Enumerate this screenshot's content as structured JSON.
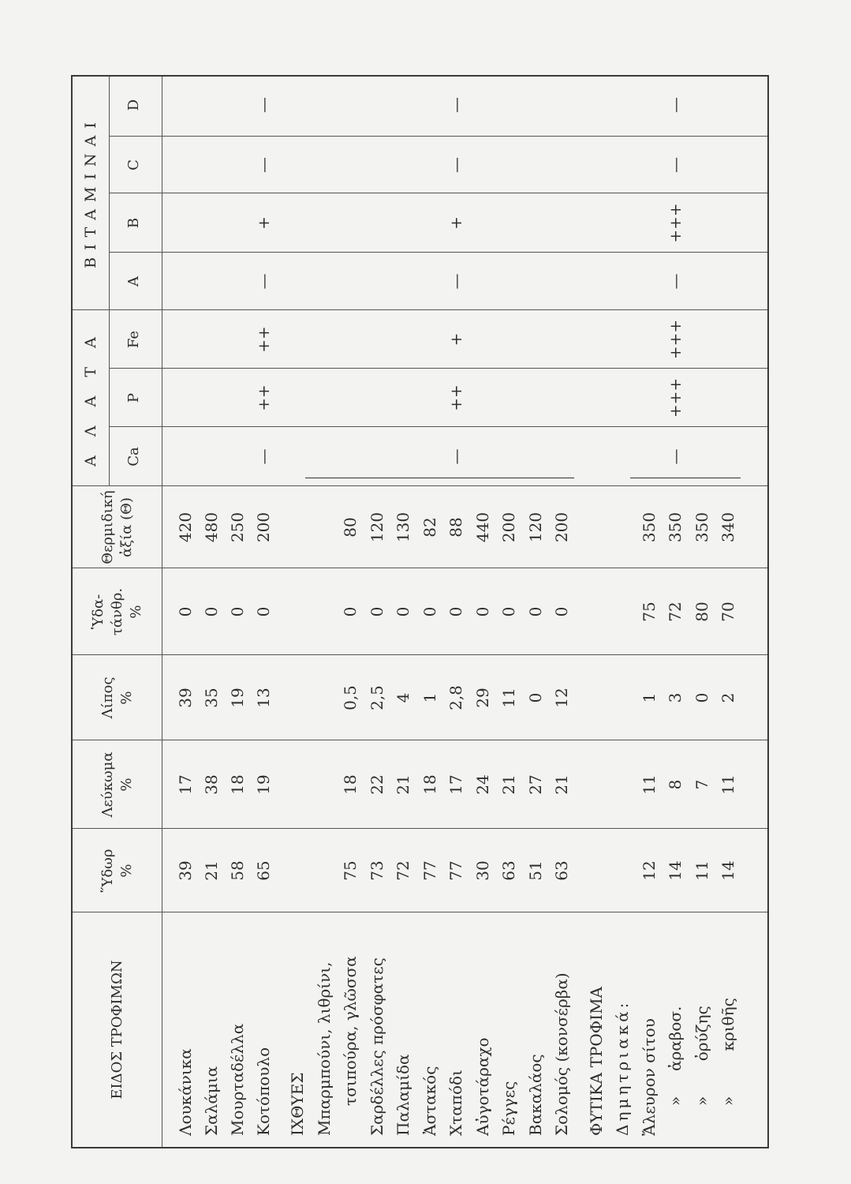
{
  "headers": {
    "food": "ΕΙΔΟΣ ΤΡΟΦΙΜΩΝ",
    "water": "Ὕδωρ\n%",
    "protein": "Λεύκωμα\n%",
    "fat": "Λίπος\n%",
    "carbs": "Ὑδα-\nτάνθρ.\n%",
    "calories": "Θερμιδική\nἀξία (Θ)",
    "salts": "Α Λ Α Τ Α",
    "vitamins": "ΒΙΤΑΜΙΝΑΙ",
    "ca": "Ca",
    "p": "P",
    "fe": "Fe",
    "a": "A",
    "b": "B",
    "c": "C",
    "d": "D"
  },
  "rows": [
    {
      "name": "Λουκάνικα",
      "water": "39",
      "protein": "17",
      "fat": "39",
      "carbs": "0",
      "cal": "420"
    },
    {
      "name": "Σαλάμια",
      "water": "21",
      "protein": "38",
      "fat": "35",
      "carbs": "0",
      "cal": "480"
    },
    {
      "name": "Μουρταδέλλα",
      "water": "58",
      "protein": "18",
      "fat": "19",
      "carbs": "0",
      "cal": "250"
    },
    {
      "name": "Κοτόπουλο",
      "water": "65",
      "protein": "19",
      "fat": "13",
      "carbs": "0",
      "cal": "200",
      "marks": {
        "ca": "—",
        "p": "++",
        "fe": "++",
        "a": "—",
        "b": "+",
        "c": "—",
        "d": "—"
      }
    },
    {
      "section": "ΙΧΘΥΕΣ"
    },
    {
      "name": "Μπαρμπούνι, λιθρίνι,"
    },
    {
      "name": "τσιπούρα, γλῶσσα",
      "indent": 1,
      "water": "75",
      "protein": "18",
      "fat": "0,5",
      "carbs": "0",
      "cal": "80"
    },
    {
      "name": "Σαρδέλλες πρόσφατες",
      "water": "73",
      "protein": "22",
      "fat": "2,5",
      "carbs": "0",
      "cal": "120"
    },
    {
      "name": "Παλαμίδα",
      "water": "72",
      "protein": "21",
      "fat": "4",
      "carbs": "0",
      "cal": "130"
    },
    {
      "name": "Ἀστακός",
      "water": "77",
      "protein": "18",
      "fat": "1",
      "carbs": "0",
      "cal": "82"
    },
    {
      "name": "Χταπόδι",
      "water": "77",
      "protein": "17",
      "fat": "2,8",
      "carbs": "0",
      "cal": "88",
      "marks": {
        "ca": "—",
        "p": "++",
        "fe": "+",
        "a": "—",
        "b": "+",
        "c": "—",
        "d": "—"
      }
    },
    {
      "name": "Αὐγοτάραχο",
      "water": "30",
      "protein": "24",
      "fat": "29",
      "carbs": "0",
      "cal": "440"
    },
    {
      "name": "Ρέγγες",
      "water": "63",
      "protein": "21",
      "fat": "11",
      "carbs": "0",
      "cal": "200"
    },
    {
      "name": "Βακαλάος",
      "water": "51",
      "protein": "27",
      "fat": "0",
      "carbs": "0",
      "cal": "120"
    },
    {
      "name": "Σολομός (κονσέρβα)",
      "water": "63",
      "protein": "21",
      "fat": "12",
      "carbs": "0",
      "cal": "200"
    },
    {
      "section": "ΦΥΤΙΚΑ ΤΡΟΦΙΜΑ"
    },
    {
      "name": "Δημητριακά:",
      "spaced": true
    },
    {
      "name": "Ἄλευρον σίτου",
      "water": "12",
      "protein": "11",
      "fat": "1",
      "carbs": "75",
      "cal": "350"
    },
    {
      "name": "»     ἀραβοσ.",
      "indent": 1,
      "water": "14",
      "protein": "8",
      "fat": "3",
      "carbs": "72",
      "cal": "350",
      "marks": {
        "ca": "—",
        "p": "+++",
        "fe": "+++",
        "a": "—",
        "b": "+++",
        "c": "—",
        "d": "—"
      }
    },
    {
      "name": "»       ὀρύζης",
      "indent": 1,
      "water": "11",
      "protein": "7",
      "fat": "0",
      "carbs": "80",
      "cal": "350"
    },
    {
      "name": "»         κριθῆς",
      "indent": 1,
      "water": "14",
      "protein": "11",
      "fat": "2",
      "carbs": "70",
      "cal": "340"
    }
  ]
}
